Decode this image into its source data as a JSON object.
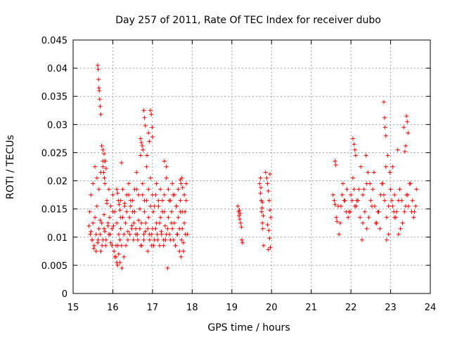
{
  "chart_data": {
    "type": "scatter",
    "title": "Day 257 of 2011, Rate Of TEC Index for receiver dubo",
    "xlabel": "GPS time / hours",
    "ylabel": "ROTI / TECUs",
    "xlim": [
      15,
      24
    ],
    "ylim": [
      0,
      0.045
    ],
    "xticks": [
      "15",
      "16",
      "17",
      "18",
      "19",
      "20",
      "21",
      "22",
      "23",
      "24"
    ],
    "yticks": [
      "0",
      "0.005",
      "0.01",
      "0.015",
      "0.02",
      "0.025",
      "0.03",
      "0.035",
      "0.04",
      "0.045"
    ],
    "grid": true,
    "marker": "+",
    "color": "#ff0000",
    "series": [
      {
        "name": "ROTI",
        "x": [
          15.4,
          15.42,
          15.45,
          15.48,
          15.5,
          15.52,
          15.55,
          15.58,
          15.6,
          15.62,
          15.65,
          15.68,
          15.7,
          15.72,
          15.75,
          15.78,
          15.8,
          15.82,
          15.85,
          15.88,
          15.9,
          15.92,
          15.95,
          15.98,
          16.0,
          16.02,
          16.05,
          16.08,
          16.1,
          16.12,
          16.15,
          16.18,
          16.2,
          16.22,
          16.25,
          16.28,
          16.3,
          16.32,
          16.35,
          16.38,
          16.4,
          16.42,
          16.45,
          16.48,
          16.5,
          16.52,
          16.55,
          16.58,
          16.6,
          16.62,
          16.65,
          16.68,
          16.7,
          16.72,
          16.75,
          16.78,
          16.8,
          16.82,
          16.85,
          16.88,
          16.9,
          16.92,
          16.95,
          16.98,
          17.0,
          17.02,
          17.05,
          17.08,
          17.1,
          17.12,
          17.15,
          17.18,
          17.2,
          17.22,
          17.25,
          17.28,
          17.3,
          17.32,
          17.35,
          17.38,
          17.4,
          17.42,
          17.45,
          17.48,
          17.5,
          17.52,
          17.55,
          17.58,
          17.6,
          17.62,
          17.65,
          17.68,
          17.7,
          17.72,
          17.75,
          17.78,
          17.8,
          17.82,
          17.85,
          17.88,
          15.45,
          15.5,
          15.55,
          15.6,
          15.65,
          15.7,
          15.75,
          15.8,
          15.85,
          15.9,
          15.95,
          16.0,
          16.05,
          16.1,
          16.15,
          16.2,
          16.25,
          16.3,
          16.35,
          16.4,
          16.45,
          16.5,
          16.55,
          16.6,
          16.65,
          16.7,
          16.75,
          16.8,
          16.85,
          16.9,
          16.95,
          17.0,
          17.05,
          17.1,
          17.15,
          17.2,
          17.25,
          17.3,
          17.35,
          17.4,
          17.45,
          17.5,
          17.55,
          17.6,
          17.65,
          17.7,
          17.75,
          17.8,
          17.85,
          15.43,
          15.48,
          15.53,
          15.58,
          15.63,
          15.68,
          15.73,
          15.78,
          15.83,
          15.88,
          15.93,
          15.98,
          16.03,
          16.08,
          16.13,
          16.18,
          16.23,
          16.28,
          16.33,
          16.38,
          16.43,
          16.48,
          16.53,
          16.58,
          16.63,
          16.68,
          16.73,
          16.78,
          16.83,
          16.88,
          16.93,
          16.98,
          17.03,
          17.08,
          17.13,
          17.18,
          17.23,
          17.28,
          17.33,
          17.38,
          17.43,
          17.48,
          17.53,
          17.58,
          17.63,
          17.68,
          17.73,
          17.78,
          17.83,
          15.62,
          15.63,
          15.64,
          15.65,
          15.66,
          15.67,
          15.68,
          15.7,
          15.72,
          15.75,
          15.78,
          15.8,
          16.78,
          16.8,
          16.82,
          16.95,
          16.97,
          16.99,
          17.0,
          16.7,
          16.72,
          16.74,
          16.76,
          16.86,
          16.9,
          16.92,
          15.75,
          15.77,
          15.79,
          15.81,
          15.83,
          16.1,
          16.12,
          16.14,
          16.16,
          16.18,
          16.2,
          16.22,
          17.3,
          17.35,
          17.7,
          17.72,
          17.74,
          17.76,
          19.15,
          19.17,
          19.18,
          19.2,
          19.22,
          19.24,
          19.25,
          19.27,
          19.19,
          19.21,
          19.7,
          19.72,
          19.74,
          19.75,
          19.77,
          19.78,
          19.8,
          19.72,
          19.76,
          19.79,
          19.73,
          19.77,
          19.85,
          19.88,
          19.9,
          19.92,
          19.94,
          19.96,
          19.98,
          19.9,
          19.93,
          19.95,
          19.97,
          19.92,
          19.96,
          21.55,
          21.6,
          21.65,
          21.7,
          21.75,
          21.8,
          21.85,
          21.9,
          21.95,
          22.0,
          22.05,
          22.1,
          22.15,
          22.2,
          22.25,
          22.3,
          22.35,
          22.4,
          22.45,
          22.5,
          22.55,
          22.6,
          22.65,
          22.7,
          22.75,
          22.8,
          22.85,
          22.9,
          22.95,
          23.0,
          23.05,
          23.1,
          23.15,
          23.2,
          23.25,
          23.3,
          23.35,
          23.4,
          23.45,
          23.5,
          23.55,
          23.6,
          23.65,
          21.58,
          21.63,
          21.68,
          21.73,
          21.78,
          21.83,
          21.88,
          21.93,
          21.98,
          22.03,
          22.08,
          22.13,
          22.18,
          22.23,
          22.28,
          22.33,
          22.38,
          22.43,
          22.48,
          22.53,
          22.58,
          22.63,
          22.68,
          22.73,
          22.78,
          22.83,
          22.88,
          22.93,
          22.98,
          23.03,
          23.08,
          23.13,
          23.18,
          23.23,
          23.28,
          23.33,
          23.38,
          23.43,
          23.48,
          23.53,
          23.58,
          23.63,
          22.05,
          22.08,
          22.1,
          22.12,
          22.83,
          22.85,
          22.86,
          22.88,
          23.4,
          23.42,
          23.44,
          23.38,
          23.36,
          21.6,
          21.62,
          22.9,
          22.95,
          23.05,
          23.1,
          23.2,
          22.3,
          22.4
        ],
        "y": [
          0.012,
          0.0145,
          0.011,
          0.0095,
          0.0125,
          0.008,
          0.0135,
          0.0105,
          0.0155,
          0.009,
          0.0115,
          0.013,
          0.0075,
          0.0125,
          0.0095,
          0.014,
          0.011,
          0.0085,
          0.016,
          0.012,
          0.0105,
          0.0135,
          0.009,
          0.0115,
          0.0145,
          0.012,
          0.0065,
          0.0085,
          0.0055,
          0.005,
          0.007,
          0.0095,
          0.0115,
          0.0085,
          0.0135,
          0.0105,
          0.016,
          0.0125,
          0.0145,
          0.011,
          0.0175,
          0.0135,
          0.0155,
          0.012,
          0.0165,
          0.0095,
          0.0145,
          0.0115,
          0.0185,
          0.0105,
          0.013,
          0.015,
          0.0085,
          0.0125,
          0.0175,
          0.0095,
          0.0145,
          0.011,
          0.0165,
          0.0075,
          0.0135,
          0.0105,
          0.0155,
          0.0085,
          0.0115,
          0.0145,
          0.0095,
          0.0175,
          0.0125,
          0.0105,
          0.0155,
          0.0085,
          0.0135,
          0.011,
          0.0165,
          0.0095,
          0.0145,
          0.012,
          0.0105,
          0.0045,
          0.0135,
          0.0165,
          0.0095,
          0.0145,
          0.0115,
          0.0175,
          0.0125,
          0.0085,
          0.0155,
          0.0105,
          0.0135,
          0.0075,
          0.0145,
          0.0065,
          0.0115,
          0.009,
          0.0125,
          0.0145,
          0.0165,
          0.0105,
          0.0175,
          0.0195,
          0.0225,
          0.0205,
          0.0185,
          0.0215,
          0.0235,
          0.0195,
          0.0165,
          0.0185,
          0.0155,
          0.0175,
          0.0145,
          0.0125,
          0.0105,
          0.0165,
          0.0185,
          0.0155,
          0.0175,
          0.0195,
          0.0165,
          0.0145,
          0.0185,
          0.0215,
          0.0175,
          0.0245,
          0.0195,
          0.0165,
          0.0225,
          0.0185,
          0.0205,
          0.0175,
          0.0155,
          0.0195,
          0.0165,
          0.0185,
          0.0145,
          0.0175,
          0.0205,
          0.0185,
          0.0165,
          0.0195,
          0.0175,
          0.0155,
          0.0185,
          0.0165,
          0.0145,
          0.0175,
          0.0195,
          0.0105,
          0.0095,
          0.0085,
          0.0075,
          0.0095,
          0.0105,
          0.0085,
          0.0115,
          0.0095,
          0.0125,
          0.0105,
          0.0085,
          0.0075,
          0.0065,
          0.0085,
          0.0055,
          0.0045,
          0.0065,
          0.0085,
          0.0095,
          0.0105,
          0.0115,
          0.0125,
          0.0105,
          0.0095,
          0.0115,
          0.0085,
          0.0105,
          0.0125,
          0.0115,
          0.0095,
          0.0105,
          0.0085,
          0.0115,
          0.0095,
          0.0125,
          0.0105,
          0.0085,
          0.0095,
          0.0115,
          0.0105,
          0.0125,
          0.0095,
          0.0085,
          0.0105,
          0.0115,
          0.0095,
          0.0075,
          0.0105,
          0.0405,
          0.0398,
          0.038,
          0.0365,
          0.036,
          0.0345,
          0.0332,
          0.0318,
          0.0262,
          0.0255,
          0.0248,
          0.0235,
          0.0325,
          0.0312,
          0.0298,
          0.0325,
          0.0318,
          0.0295,
          0.0278,
          0.0275,
          0.0268,
          0.0262,
          0.0255,
          0.0245,
          0.0285,
          0.027,
          0.0225,
          0.0215,
          0.0205,
          0.0235,
          0.0222,
          0.0185,
          0.0178,
          0.0165,
          0.0158,
          0.0148,
          0.0135,
          0.0232,
          0.0235,
          0.0225,
          0.0202,
          0.0195,
          0.0205,
          0.0188,
          0.0155,
          0.0145,
          0.0138,
          0.0132,
          0.0125,
          0.0118,
          0.0095,
          0.009,
          0.0148,
          0.0142,
          0.0195,
          0.0178,
          0.0165,
          0.0145,
          0.0125,
          0.0115,
          0.0085,
          0.0205,
          0.0152,
          0.0138,
          0.0188,
          0.0162,
          0.0215,
          0.0205,
          0.0195,
          0.0182,
          0.0165,
          0.0148,
          0.0135,
          0.0122,
          0.0112,
          0.0098,
          0.0082,
          0.0078,
          0.0212,
          0.0175,
          0.0158,
          0.0128,
          0.0105,
          0.0155,
          0.0195,
          0.0165,
          0.0185,
          0.0145,
          0.0175,
          0.0205,
          0.0155,
          0.0165,
          0.0185,
          0.0225,
          0.0175,
          0.0145,
          0.0195,
          0.0135,
          0.0165,
          0.0185,
          0.0155,
          0.0125,
          0.0145,
          0.0175,
          0.0195,
          0.0165,
          0.0135,
          0.0155,
          0.0185,
          0.0225,
          0.0175,
          0.0145,
          0.0165,
          0.0115,
          0.0125,
          0.0145,
          0.0175,
          0.0155,
          0.0195,
          0.0165,
          0.0145,
          0.0185,
          0.0165,
          0.0135,
          0.0155,
          0.0125,
          0.0175,
          0.0165,
          0.0145,
          0.0135,
          0.0145,
          0.0165,
          0.0185,
          0.0155,
          0.0165,
          0.0135,
          0.0095,
          0.0185,
          0.0245,
          0.0215,
          0.0195,
          0.0155,
          0.0215,
          0.0125,
          0.0145,
          0.0115,
          0.0195,
          0.0175,
          0.0225,
          0.0245,
          0.0215,
          0.0165,
          0.0145,
          0.0135,
          0.0255,
          0.0185,
          0.0165,
          0.0295,
          0.0155,
          0.0175,
          0.0195,
          0.0145,
          0.0135,
          0.0155,
          0.0275,
          0.0265,
          0.0255,
          0.0245,
          0.034,
          0.0312,
          0.0295,
          0.028,
          0.0315,
          0.0305,
          0.0285,
          0.0262,
          0.0252,
          0.0235,
          0.0228,
          0.0095,
          0.0105,
          0.0155,
          0.0135,
          0.0105,
          0.0125,
          0.0115
        ]
      }
    ]
  }
}
